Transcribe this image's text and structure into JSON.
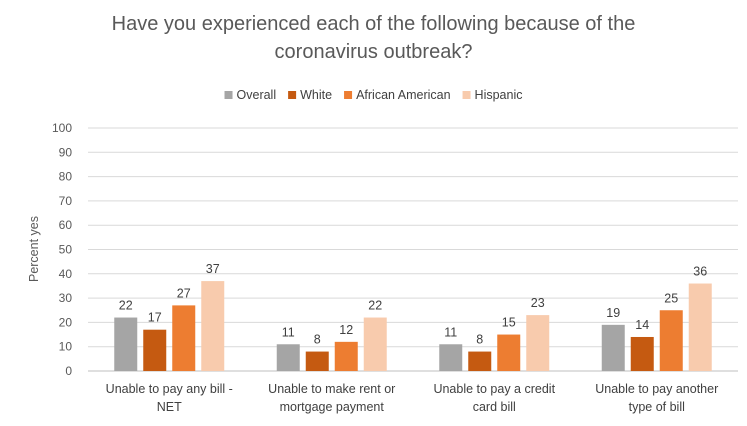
{
  "chart_data": {
    "type": "bar",
    "title_lines": [
      "Have you experienced each of the following because of the",
      "coronavirus outbreak?"
    ],
    "ylabel": "Percent yes",
    "xlabel": "",
    "ylim": [
      0,
      100
    ],
    "yticks": [
      0,
      10,
      20,
      30,
      40,
      50,
      60,
      70,
      80,
      90,
      100
    ],
    "grid": true,
    "legend_position": "top",
    "categories": [
      [
        "Unable to pay any bill -",
        "NET"
      ],
      [
        "Unable to make rent or",
        "mortgage payment"
      ],
      [
        "Unable to pay a credit",
        "card bill"
      ],
      [
        "Unable to pay another",
        "type of bill"
      ]
    ],
    "series": [
      {
        "name": "Overall",
        "color": "#A5A5A5",
        "values": [
          22,
          11,
          11,
          19
        ]
      },
      {
        "name": "White",
        "color": "#C55A11",
        "values": [
          17,
          8,
          8,
          14
        ]
      },
      {
        "name": "African American",
        "color": "#ED7D31",
        "values": [
          27,
          12,
          15,
          25
        ]
      },
      {
        "name": "Hispanic",
        "color": "#F8CBAD",
        "values": [
          37,
          22,
          23,
          36
        ]
      }
    ]
  }
}
